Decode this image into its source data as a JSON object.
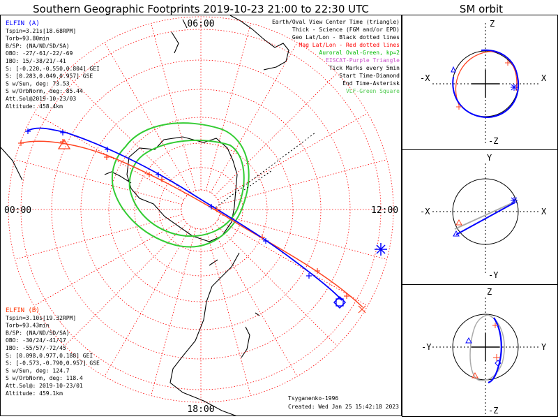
{
  "title": "Southern Geographic Footprints 2019-10-23 21:00 to 22:30 UTC",
  "sm_title": "SM orbit",
  "map": {
    "lt_labels": {
      "top": "06:00",
      "left": "00:00",
      "right": "12:00",
      "bottom": "18:00"
    },
    "legend": [
      {
        "text": "Earth/Oval View Center Time (triangle)",
        "color": "#000000"
      },
      {
        "text": "Thick - Science (FGM and/or EPD)",
        "color": "#000000"
      },
      {
        "text": "Geo Lat/Lon - Black dotted lines",
        "color": "#000000"
      },
      {
        "text": "Mag Lat/Lon - Red dotted lines",
        "color": "#ff0000"
      },
      {
        "text": "Auroral Oval-Green, kp=2",
        "color": "#00bb00"
      },
      {
        "text": "EISCAT-Purple Triangle",
        "color": "#cc55cc"
      },
      {
        "text": "Tick Marks every 5min",
        "color": "#000000"
      },
      {
        "text": "Start Time-Diamond",
        "color": "#000000"
      },
      {
        "text": "End Time-Asterisk",
        "color": "#000000"
      },
      {
        "text": "VLF-Green Square",
        "color": "#55cc55"
      }
    ],
    "elfin_a": {
      "color": "#0000ff",
      "lines": [
        "ELFIN (A)",
        "Tspin=3.21s[18.68RPM]",
        "Torb=93.80min",
        "B/SP: (NA/ND/SD/SA)",
        "OBO: -27/-61/-22/-69",
        "IBO: 15/-38/21/-41",
        "S: [-0.220,-0.550,0.804] GEI",
        "S: [0.283,0.049,0.957] GSE",
        "S w/Sun, deg: 73.53",
        "S w/OrbNorm, deg: 85.44",
        "Att.Sol@2019-10-23/03",
        "Altitude: 458.4km"
      ]
    },
    "elfin_b": {
      "color": "#ff3300",
      "lines": [
        "ELFIN (B)",
        "Tspin=3.10s[19.32RPM]",
        "Torb=93.43min",
        "B/SP: (NA/ND/SD/SA)",
        "OBO: -30/24/-41/17",
        "IBO: -55/57/-72/45",
        "S: [0.098,0.977,0.188] GEI",
        "S: [-0.573,-0.790,0.957] GSE",
        "S w/Sun, deg: 124.7",
        "S w/OrbNorm, deg: 118.4",
        "Att.Sol@: 2019-10-23/01",
        "Altitude: 459.1km"
      ]
    },
    "credit": "Tsyganenko-1996",
    "created": "Created: Wed Jan 25 15:42:18 2023"
  },
  "panels": [
    {
      "top": "Z",
      "bottom": "-Z",
      "left": "-X",
      "right": "X"
    },
    {
      "top": "Y",
      "bottom": "-Y",
      "left": "-X",
      "right": "X"
    },
    {
      "top": "Z",
      "bottom": "-Z",
      "left": "-Y",
      "right": "Y"
    }
  ],
  "colors": {
    "elfin_a": "#0000ff",
    "elfin_b": "#ff4422",
    "oval": "#33cc33",
    "grid": "#ff0000"
  }
}
